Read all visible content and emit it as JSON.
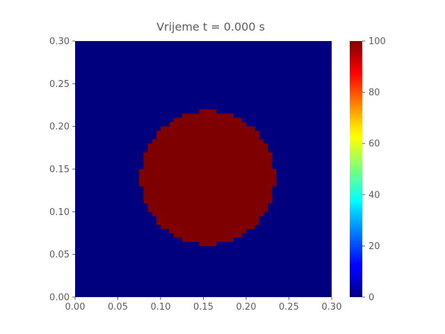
{
  "chart_data": {
    "type": "heatmap",
    "title": "Vrijeme t = 0.000 s",
    "xlabel": "",
    "ylabel": "",
    "xlim": [
      0.0,
      0.3
    ],
    "ylim": [
      0.0,
      0.3
    ],
    "x_ticks": [
      "0.00",
      "0.05",
      "0.10",
      "0.15",
      "0.20",
      "0.25",
      "0.30"
    ],
    "y_ticks": [
      "0.00",
      "0.05",
      "0.10",
      "0.15",
      "0.20",
      "0.25",
      "0.30"
    ],
    "colorbar": {
      "colormap": "jet",
      "range": [
        0,
        100
      ],
      "ticks": [
        "0",
        "20",
        "40",
        "60",
        "80",
        "100"
      ]
    },
    "grid": false,
    "field": {
      "background_value": 0,
      "disk_value": 100,
      "disk_center": [
        0.155,
        0.14
      ],
      "disk_radius": 0.078
    },
    "colors": {
      "low": "#00007f",
      "high": "#7f0000"
    }
  }
}
